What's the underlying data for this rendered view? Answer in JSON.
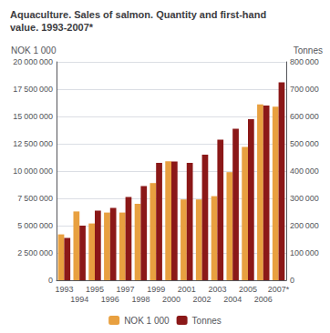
{
  "chart_data": {
    "type": "bar",
    "title": "Aquaculture. Sales of salmon. Quantity and first-hand\nvalue. 1993-2007*",
    "y_label": "NOK 1 000",
    "y2_label": "Tonnes",
    "categories": [
      "1993",
      "1994",
      "1995",
      "1996",
      "1997",
      "1998",
      "1999",
      "2000",
      "2001",
      "2002",
      "2003",
      "2004",
      "2005",
      "2006",
      "2007*"
    ],
    "series": [
      {
        "name": "NOK 1 000",
        "color": "#E8A040",
        "values": [
          4200000,
          6300000,
          5200000,
          6200000,
          6200000,
          7000000,
          8900000,
          10900000,
          7400000,
          7400000,
          7700000,
          9900000,
          12200000,
          16100000,
          15900000
        ]
      },
      {
        "name": "Tonnes",
        "color": "#8B1818",
        "axis": "y2",
        "values": [
          155000,
          200000,
          255000,
          265000,
          305000,
          345000,
          430000,
          435000,
          430000,
          460000,
          515000,
          555000,
          590000,
          640000,
          725000
        ]
      }
    ],
    "ylim": [
      0,
      20000000
    ],
    "yticks": [
      0,
      {
        "value": 2500000,
        "label": "2 500 000"
      },
      {
        "value": 5000000,
        "label": "5 000 000"
      },
      {
        "value": 7500000,
        "label": "7 500 000"
      },
      {
        "value": 10000000,
        "label": "10 000 000"
      },
      {
        "value": 12500000,
        "label": "12 500 000"
      },
      {
        "value": 15000000,
        "label": "15 000 000"
      },
      {
        "value": 17500000,
        "label": "17 500 000"
      },
      {
        "value": 20000000,
        "label": "20 000 000"
      }
    ],
    "y2lim": [
      0,
      800000
    ],
    "y2ticks": [
      0,
      {
        "value": 100000,
        "label": "100 000"
      },
      {
        "value": 200000,
        "label": "200 000"
      },
      {
        "value": 300000,
        "label": "300 000"
      },
      {
        "value": 400000,
        "label": "400 000"
      },
      {
        "value": 500000,
        "label": "500 000"
      },
      {
        "value": 600000,
        "label": "600 000"
      },
      {
        "value": 700000,
        "label": "700 000"
      },
      {
        "value": 800000,
        "label": "800 000"
      }
    ],
    "grid": true,
    "legend": "bottom"
  }
}
